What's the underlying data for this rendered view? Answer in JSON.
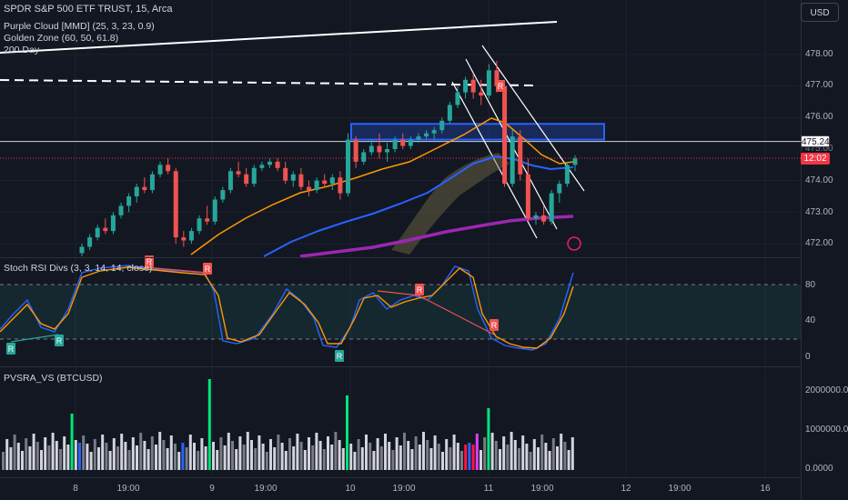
{
  "header": {
    "symbol": "SPDR S&P 500 ETF TRUST, 15, Arca",
    "indicators": [
      "Purple Cloud [MMD] (25, 3, 23, 0.9)",
      "Golden Zone (60, 50, 61.8)",
      "200 Day"
    ]
  },
  "currency_button": "USD",
  "price_axis": {
    "ticks": [
      "478.00",
      "477.00",
      "476.00",
      "474.00",
      "473.00",
      "472.00"
    ],
    "overlap_tick": "475.00"
  },
  "current_price": {
    "value": "475.24",
    "countdown": "12:02",
    "countdown_color": "#f23645"
  },
  "stoch_panel": {
    "title": "Stoch RSI Divs (3, 3, 14, 14, close)",
    "ticks": [
      "80",
      "40",
      "0"
    ],
    "labels": [
      "R",
      "R",
      "R",
      "R",
      "R",
      "R",
      "R",
      "R"
    ]
  },
  "volume_panel": {
    "title": "PVSRA_VS (BTCUSD)",
    "ticks": [
      "2000000.00",
      "1000000.00",
      "0.0000"
    ]
  },
  "time_axis": {
    "ticks": [
      "8",
      "19:00",
      "9",
      "19:00",
      "10",
      "19:00",
      "11",
      "19:00",
      "12",
      "19:00",
      "16"
    ]
  },
  "colors": {
    "up": "#26a69a",
    "down": "#ef5350",
    "bg": "#131722",
    "blue_ma": "#2962ff",
    "purple_ma": "#9c27b0",
    "orange_ma": "#ff9800"
  },
  "chart_data": {
    "type": "candlestick",
    "ylim": [
      471.6,
      478.6
    ],
    "candles": [
      [
        471.7,
        472.0,
        471.6,
        471.9
      ],
      [
        471.9,
        472.3,
        471.8,
        472.2
      ],
      [
        472.2,
        472.6,
        472.1,
        472.5
      ],
      [
        472.5,
        472.8,
        472.3,
        472.4
      ],
      [
        472.4,
        473.0,
        472.3,
        472.9
      ],
      [
        472.9,
        473.3,
        472.8,
        473.2
      ],
      [
        473.2,
        473.6,
        473.0,
        473.5
      ],
      [
        473.5,
        473.9,
        473.3,
        473.8
      ],
      [
        473.8,
        474.1,
        473.6,
        473.7
      ],
      [
        473.7,
        474.3,
        473.6,
        474.2
      ],
      [
        474.2,
        474.6,
        474.1,
        474.5
      ],
      [
        474.5,
        474.7,
        474.2,
        474.3
      ],
      [
        474.3,
        474.4,
        472.0,
        472.2
      ],
      [
        472.2,
        472.4,
        471.9,
        472.1
      ],
      [
        472.1,
        472.5,
        472.0,
        472.4
      ],
      [
        472.4,
        472.9,
        472.3,
        472.8
      ],
      [
        472.8,
        473.2,
        472.6,
        472.7
      ],
      [
        472.7,
        473.5,
        472.6,
        473.4
      ],
      [
        473.4,
        473.8,
        473.3,
        473.7
      ],
      [
        473.7,
        474.4,
        473.6,
        474.3
      ],
      [
        474.3,
        474.6,
        474.1,
        474.2
      ],
      [
        474.2,
        474.4,
        473.8,
        473.9
      ],
      [
        473.9,
        474.5,
        473.8,
        474.4
      ],
      [
        474.4,
        474.6,
        474.3,
        474.5
      ],
      [
        474.5,
        474.7,
        474.4,
        474.6
      ],
      [
        474.6,
        474.7,
        474.3,
        474.4
      ],
      [
        474.4,
        474.6,
        473.9,
        474.0
      ],
      [
        474.0,
        474.3,
        473.8,
        474.2
      ],
      [
        474.2,
        474.4,
        473.7,
        473.8
      ],
      [
        473.8,
        474.0,
        473.5,
        473.7
      ],
      [
        473.7,
        474.1,
        473.6,
        474.0
      ],
      [
        474.0,
        474.2,
        473.8,
        473.9
      ],
      [
        473.9,
        474.2,
        473.7,
        474.1
      ],
      [
        474.1,
        474.3,
        473.4,
        473.6
      ],
      [
        473.6,
        475.5,
        473.5,
        475.3
      ],
      [
        475.3,
        475.4,
        474.4,
        474.6
      ],
      [
        474.6,
        475.0,
        474.5,
        474.9
      ],
      [
        474.9,
        475.3,
        474.8,
        475.1
      ],
      [
        475.1,
        475.5,
        474.7,
        474.9
      ],
      [
        474.9,
        475.2,
        474.6,
        475.0
      ],
      [
        475.0,
        475.4,
        474.9,
        475.3
      ],
      [
        475.3,
        475.5,
        475.0,
        475.1
      ],
      [
        475.1,
        475.4,
        475.0,
        475.3
      ],
      [
        475.3,
        475.5,
        475.2,
        475.4
      ],
      [
        475.4,
        475.6,
        475.3,
        475.5
      ],
      [
        475.5,
        475.7,
        475.3,
        475.6
      ],
      [
        475.6,
        476.0,
        475.5,
        475.9
      ],
      [
        475.9,
        476.5,
        475.8,
        476.4
      ],
      [
        476.4,
        477.0,
        476.3,
        476.8
      ],
      [
        476.8,
        477.3,
        476.6,
        477.2
      ],
      [
        477.2,
        477.4,
        476.6,
        476.8
      ],
      [
        476.8,
        477.2,
        476.4,
        476.7
      ],
      [
        476.7,
        477.7,
        476.6,
        477.5
      ],
      [
        477.5,
        477.8,
        476.8,
        477.0
      ],
      [
        477.0,
        477.1,
        473.8,
        473.9
      ],
      [
        473.9,
        475.6,
        473.8,
        475.4
      ],
      [
        475.4,
        475.6,
        474.0,
        474.2
      ],
      [
        474.2,
        474.7,
        472.7,
        472.8
      ],
      [
        472.8,
        473.0,
        472.6,
        472.9
      ],
      [
        472.9,
        473.2,
        472.6,
        472.7
      ],
      [
        472.7,
        473.7,
        472.6,
        473.6
      ],
      [
        473.6,
        474.0,
        473.3,
        473.9
      ],
      [
        473.9,
        474.6,
        473.8,
        474.5
      ],
      [
        474.5,
        474.8,
        474.3,
        474.7
      ]
    ],
    "price_ticks": [
      478,
      477,
      476,
      474,
      473,
      472
    ],
    "current_price": 475.24,
    "zone": [
      475.3,
      475.8
    ]
  }
}
